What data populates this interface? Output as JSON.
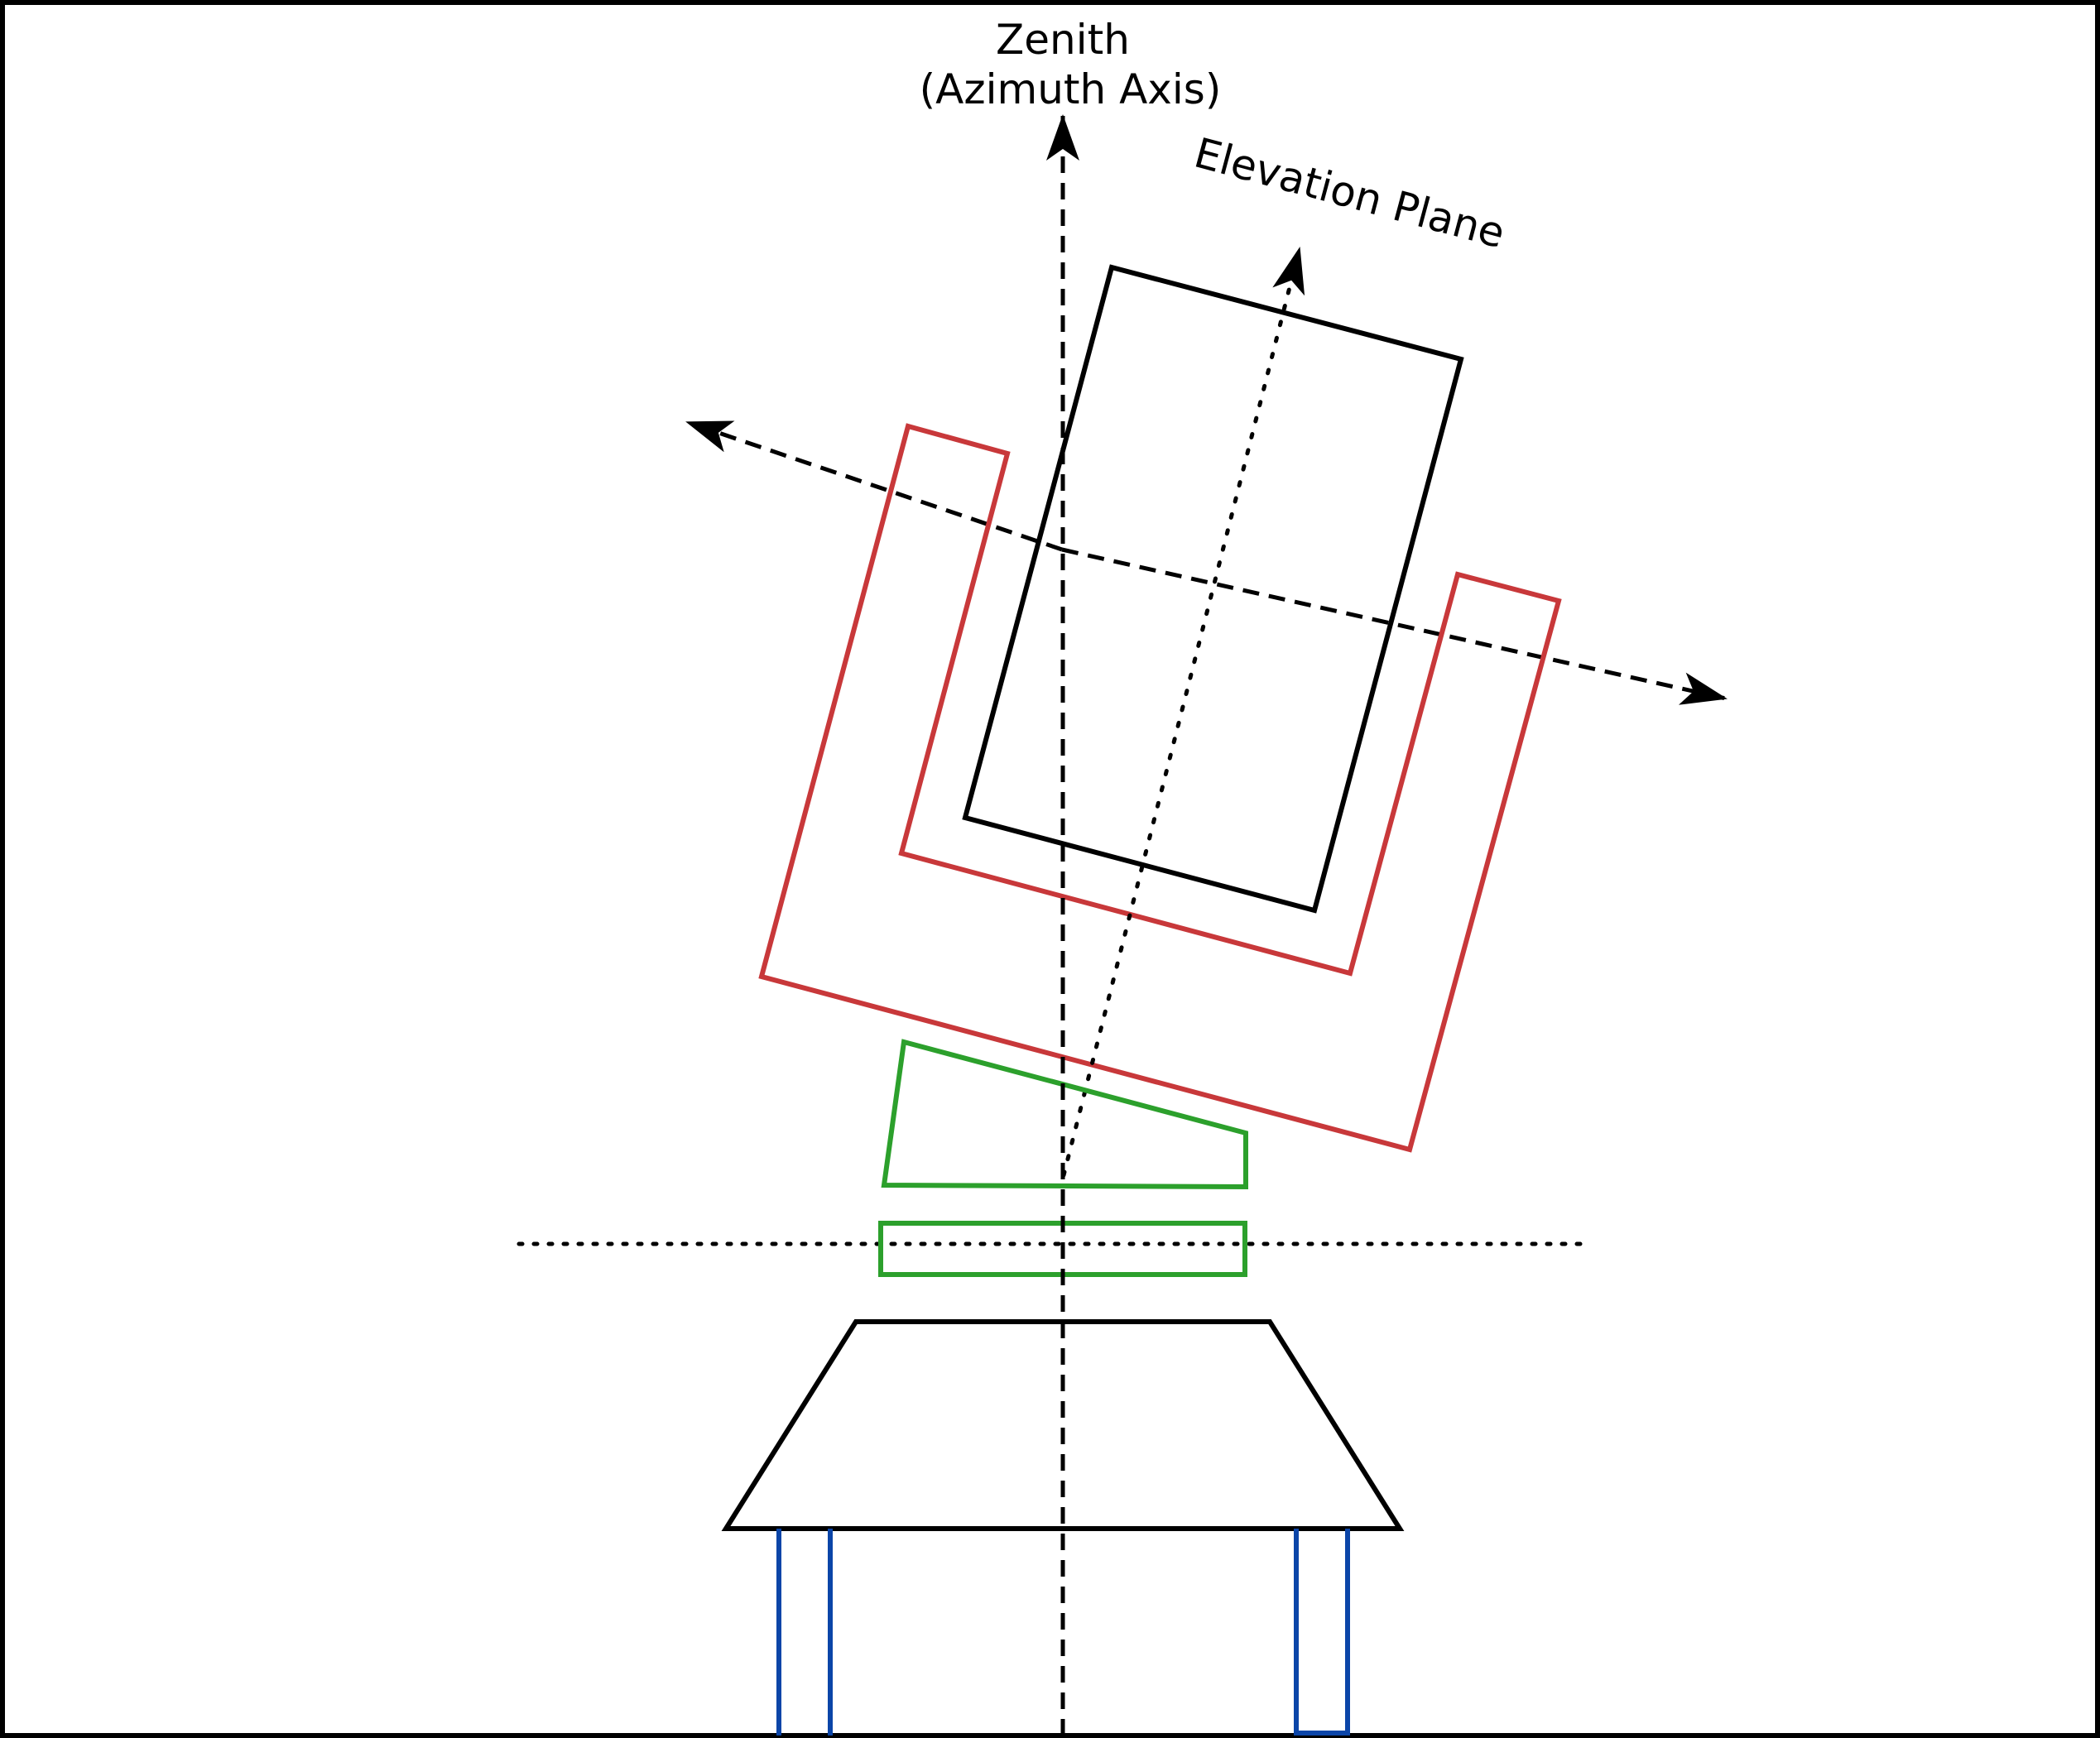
{
  "labels": {
    "zenith": "Zenith",
    "azimuth_axis": "(Azimuth Axis)",
    "elevation_plane": "Elevation Plane"
  },
  "colors": {
    "frame": "#000000",
    "telescope": "#000000",
    "fork_mount": "#c8383a",
    "wedge": "#2ca02c",
    "azimuth_plate": "#2ca02c",
    "base": "#000000",
    "pier_legs": "#0b45a8",
    "axes": "#000000"
  },
  "components": [
    {
      "name": "telescope-tube",
      "color_key": "telescope"
    },
    {
      "name": "fork-mount",
      "color_key": "fork_mount"
    },
    {
      "name": "wedge",
      "color_key": "wedge"
    },
    {
      "name": "azimuth-plate",
      "color_key": "azimuth_plate"
    },
    {
      "name": "base",
      "color_key": "base"
    },
    {
      "name": "pier-legs",
      "color_key": "pier_legs"
    }
  ]
}
